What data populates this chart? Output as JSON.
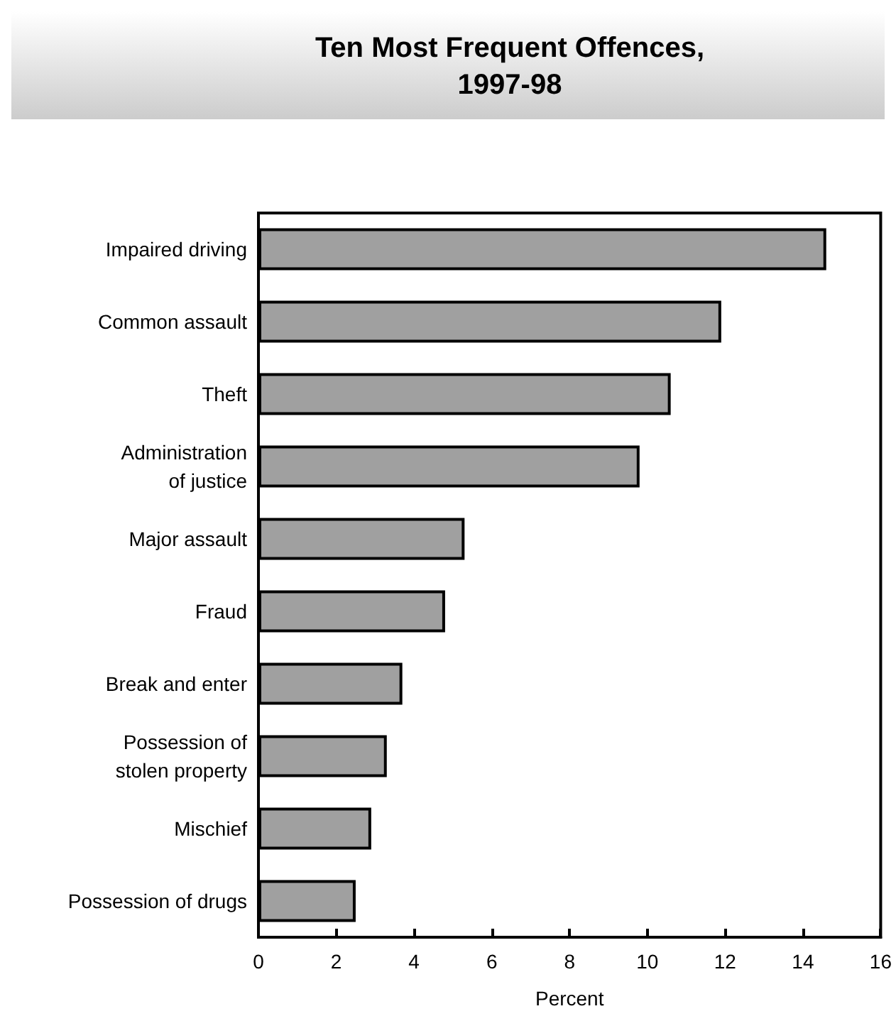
{
  "chart_data": {
    "type": "bar",
    "orientation": "horizontal",
    "title": "Ten Most Frequent Offences,\n1997-98",
    "xlabel": "Percent",
    "categories": [
      "Impaired driving",
      "Common assault",
      "Theft",
      "Administration\nof justice",
      "Major assault",
      "Fraud",
      "Break and enter",
      "Possession of\nstolen property",
      "Mischief",
      "Possession of drugs"
    ],
    "values": [
      14.6,
      11.9,
      10.6,
      9.8,
      5.3,
      4.8,
      3.7,
      3.3,
      2.9,
      2.5
    ],
    "color": "#a0a0a0",
    "xlim": [
      0,
      16
    ],
    "xticks": [
      0,
      2,
      4,
      6,
      8,
      10,
      12,
      14,
      16
    ],
    "grid": false
  }
}
